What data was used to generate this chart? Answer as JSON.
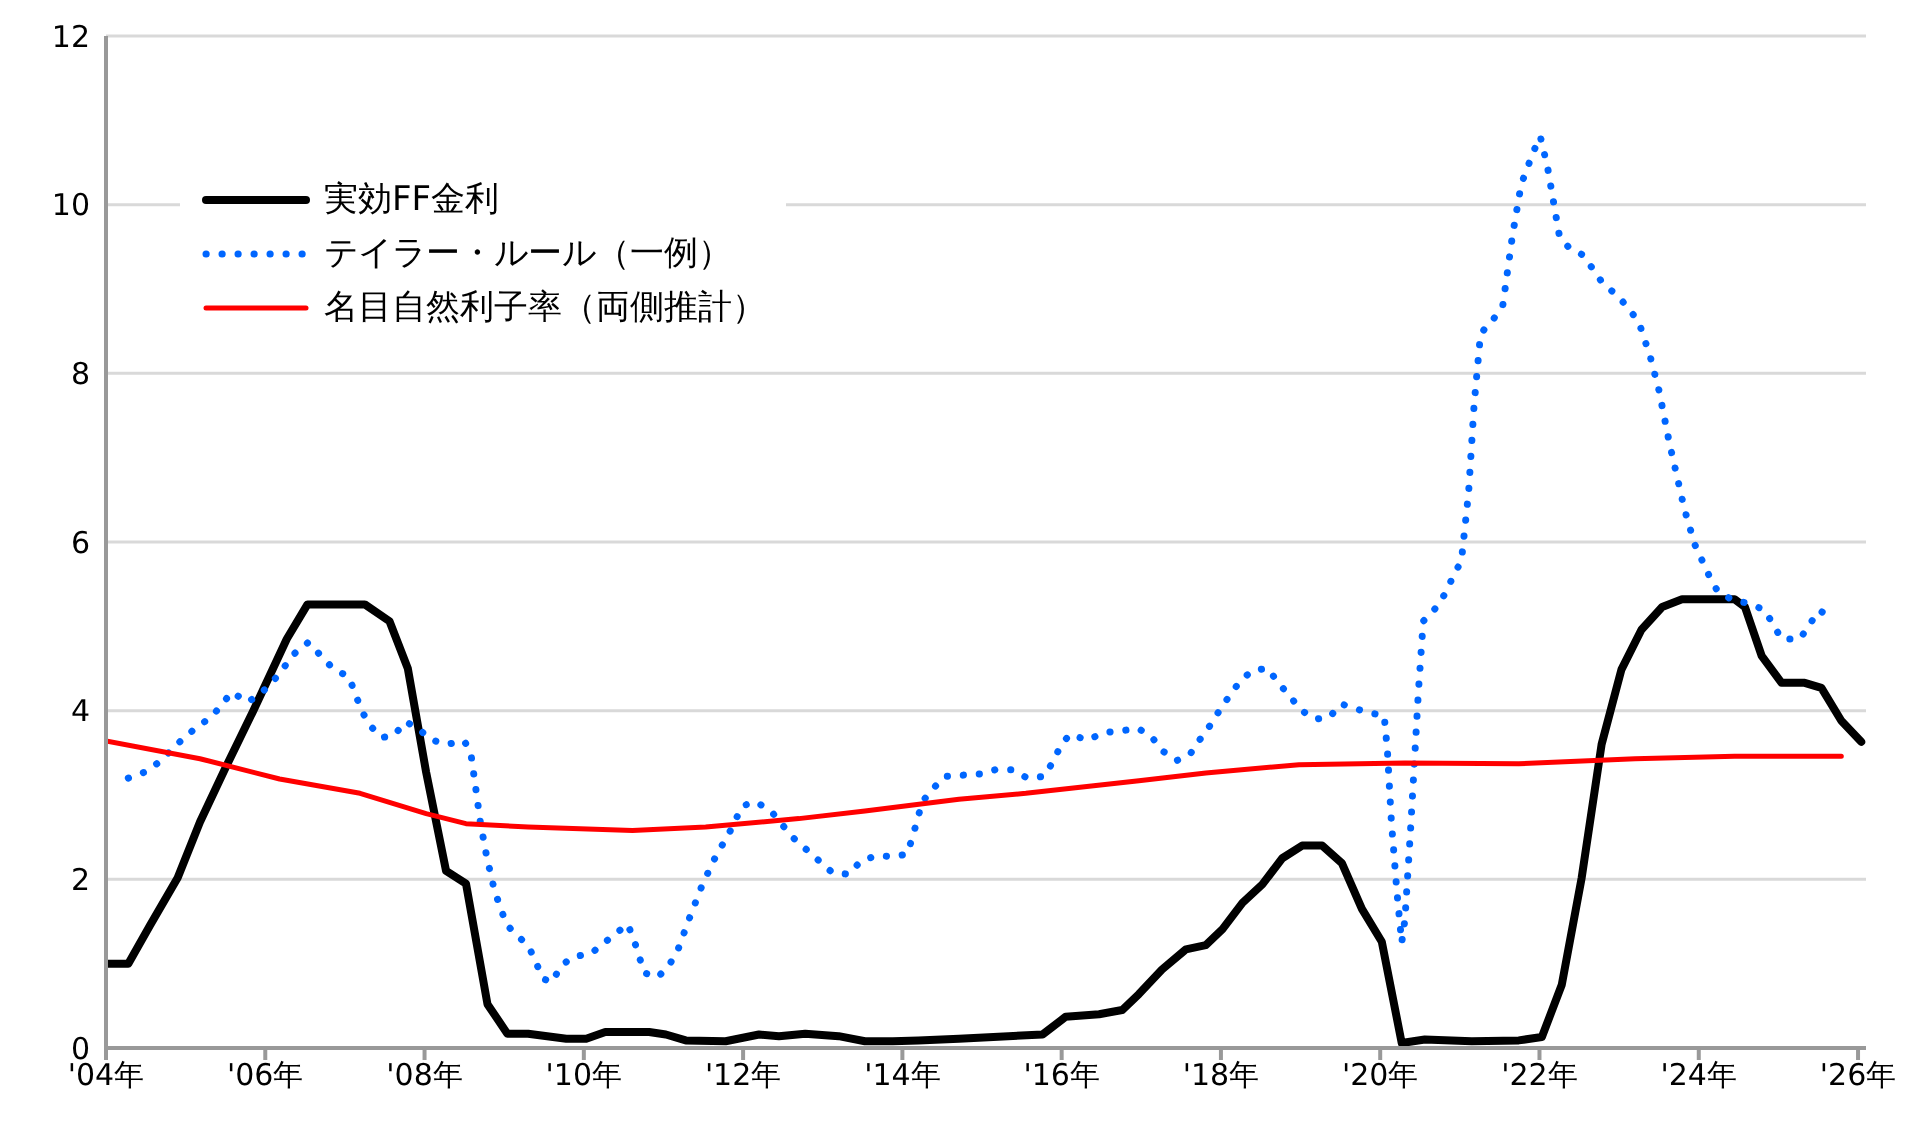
{
  "chart_data": {
    "type": "line",
    "xlim": [
      4,
      26.1
    ],
    "ylim": [
      0,
      12
    ],
    "yticks": [
      0,
      2,
      4,
      6,
      8,
      10,
      12
    ],
    "xticks": [
      {
        "value": 4,
        "label": "'04年"
      },
      {
        "value": 6,
        "label": "'06年"
      },
      {
        "value": 8,
        "label": "'08年"
      },
      {
        "value": 10,
        "label": "'10年"
      },
      {
        "value": 12,
        "label": "'12年"
      },
      {
        "value": 14,
        "label": "'14年"
      },
      {
        "value": 16,
        "label": "'16年"
      },
      {
        "value": 18,
        "label": "'18年"
      },
      {
        "value": 20,
        "label": "'20年"
      },
      {
        "value": 22,
        "label": "'22年"
      },
      {
        "value": 24,
        "label": "'24年"
      },
      {
        "value": 26,
        "label": "'26年"
      }
    ],
    "grid": "y",
    "legend": "top left",
    "marker": "none",
    "series": [
      {
        "name": "実効FF金利",
        "color": "#000000",
        "line_style": "solid",
        "x": [
          4.0,
          4.28,
          4.55,
          4.9,
          5.18,
          5.51,
          5.85,
          6.27,
          6.53,
          7.25,
          7.56,
          7.79,
          8.02,
          8.27,
          8.52,
          8.79,
          9.04,
          9.3,
          9.78,
          10.03,
          10.27,
          10.82,
          11.03,
          11.28,
          11.78,
          12.2,
          12.45,
          12.78,
          13.2,
          13.53,
          13.88,
          14.2,
          14.71,
          15.76,
          16.05,
          16.47,
          16.76,
          16.97,
          17.26,
          17.56,
          17.81,
          18.02,
          18.27,
          18.52,
          18.77,
          19.02,
          19.27,
          19.52,
          19.77,
          20.02,
          20.27,
          20.56,
          21.15,
          21.74,
          22.03,
          22.28,
          22.53,
          22.78,
          23.03,
          23.28,
          23.54,
          23.79,
          24.45,
          24.58,
          24.79,
          25.04,
          25.33,
          25.54,
          25.79,
          26.04
        ],
        "values": [
          1.0,
          1.0,
          1.45,
          2.02,
          2.68,
          3.34,
          4.0,
          4.85,
          5.26,
          5.26,
          5.06,
          4.5,
          3.27,
          2.1,
          1.95,
          0.52,
          0.17,
          0.17,
          0.11,
          0.11,
          0.19,
          0.19,
          0.16,
          0.09,
          0.08,
          0.16,
          0.14,
          0.17,
          0.14,
          0.08,
          0.08,
          0.09,
          0.11,
          0.16,
          0.37,
          0.4,
          0.45,
          0.64,
          0.93,
          1.17,
          1.22,
          1.41,
          1.72,
          1.94,
          2.25,
          2.4,
          2.4,
          2.19,
          1.65,
          1.26,
          0.06,
          0.1,
          0.08,
          0.09,
          0.13,
          0.75,
          2.02,
          3.6,
          4.49,
          4.96,
          5.23,
          5.32,
          5.32,
          5.23,
          4.65,
          4.33,
          4.33,
          4.27,
          3.88,
          3.63
        ]
      },
      {
        "name": "テイラー・ルール（一例）",
        "color": "#0066ff",
        "line_style": "dotted",
        "x": [
          4.28,
          4.51,
          4.68,
          4.98,
          5.15,
          5.33,
          5.58,
          5.78,
          5.95,
          6.1,
          6.37,
          6.54,
          6.85,
          7.05,
          7.21,
          7.31,
          7.46,
          7.62,
          7.76,
          7.92,
          8.07,
          8.27,
          8.5,
          8.58,
          8.64,
          8.7,
          8.78,
          8.88,
          9.03,
          9.16,
          9.31,
          9.49,
          9.6,
          9.71,
          9.86,
          10.09,
          10.26,
          10.55,
          10.63,
          10.76,
          10.93,
          11.07,
          11.18,
          11.33,
          11.49,
          11.68,
          11.8,
          11.99,
          12.16,
          12.35,
          12.62,
          12.81,
          13.12,
          13.33,
          13.48,
          13.68,
          13.9,
          14.06,
          14.13,
          14.25,
          14.38,
          14.53,
          14.98,
          15.17,
          15.38,
          15.57,
          15.78,
          15.9,
          16.0,
          16.11,
          16.32,
          16.53,
          16.74,
          16.96,
          17.13,
          17.27,
          17.45,
          17.61,
          17.73,
          17.86,
          17.98,
          18.11,
          18.24,
          18.4,
          18.59,
          18.72,
          18.86,
          19.0,
          19.18,
          19.36,
          19.51,
          19.7,
          19.89,
          20.05,
          20.09,
          20.14,
          20.21,
          20.27,
          20.31,
          20.38,
          20.43,
          20.48,
          20.54,
          20.69,
          20.81,
          20.91,
          21.02,
          21.11,
          21.18,
          21.26,
          21.42,
          21.54,
          21.66,
          21.77,
          21.92,
          22.01,
          22.1,
          22.25,
          22.37,
          22.55,
          22.8,
          22.97,
          23.12,
          23.25,
          23.39,
          23.5,
          23.63,
          23.82,
          23.95,
          24.13,
          24.24,
          24.43,
          24.64,
          24.83,
          25.04,
          25.27,
          25.51,
          25.7
        ],
        "values": [
          3.2,
          3.28,
          3.4,
          3.68,
          3.81,
          3.93,
          4.22,
          4.1,
          4.21,
          4.35,
          4.68,
          4.81,
          4.5,
          4.4,
          4.0,
          3.83,
          3.68,
          3.71,
          3.87,
          3.79,
          3.66,
          3.6,
          3.64,
          3.5,
          3.1,
          2.68,
          2.27,
          1.86,
          1.46,
          1.34,
          1.2,
          0.82,
          0.78,
          0.97,
          1.08,
          1.12,
          1.25,
          1.47,
          1.28,
          0.89,
          0.84,
          0.98,
          1.16,
          1.55,
          1.94,
          2.32,
          2.5,
          2.87,
          2.92,
          2.81,
          2.5,
          2.34,
          2.08,
          2.06,
          2.22,
          2.28,
          2.27,
          2.3,
          2.51,
          2.92,
          3.07,
          3.22,
          3.25,
          3.3,
          3.3,
          3.2,
          3.22,
          3.41,
          3.61,
          3.72,
          3.65,
          3.74,
          3.76,
          3.79,
          3.69,
          3.52,
          3.41,
          3.48,
          3.65,
          3.82,
          4.0,
          4.18,
          4.35,
          4.48,
          4.5,
          4.33,
          4.18,
          4.01,
          3.9,
          3.92,
          4.08,
          4.02,
          3.97,
          3.94,
          3.53,
          2.69,
          1.85,
          1.25,
          1.52,
          2.57,
          3.4,
          4.23,
          5.06,
          5.21,
          5.38,
          5.58,
          5.78,
          6.59,
          7.64,
          8.47,
          8.64,
          8.81,
          9.63,
          10.24,
          10.62,
          10.81,
          10.45,
          9.63,
          9.49,
          9.4,
          9.06,
          8.93,
          8.77,
          8.6,
          8.2,
          7.8,
          7.18,
          6.39,
          5.97,
          5.6,
          5.41,
          5.31,
          5.27,
          5.19,
          4.85,
          4.85,
          5.19,
          5.09
        ]
      },
      {
        "name": "名目自然利子率（両側推計）",
        "color": "#ff0000",
        "line_style": "solid",
        "x": [
          4.0,
          5.18,
          6.18,
          7.19,
          8.02,
          8.52,
          9.3,
          10.61,
          11.53,
          12.7,
          13.53,
          14.71,
          15.55,
          16.97,
          17.81,
          18.98,
          20.31,
          21.74,
          23.2,
          24.45,
          25.79
        ],
        "values": [
          3.64,
          3.43,
          3.19,
          3.02,
          2.78,
          2.66,
          2.62,
          2.58,
          2.62,
          2.72,
          2.81,
          2.95,
          3.02,
          3.17,
          3.26,
          3.36,
          3.38,
          3.37,
          3.43,
          3.46,
          3.46
        ]
      }
    ]
  }
}
